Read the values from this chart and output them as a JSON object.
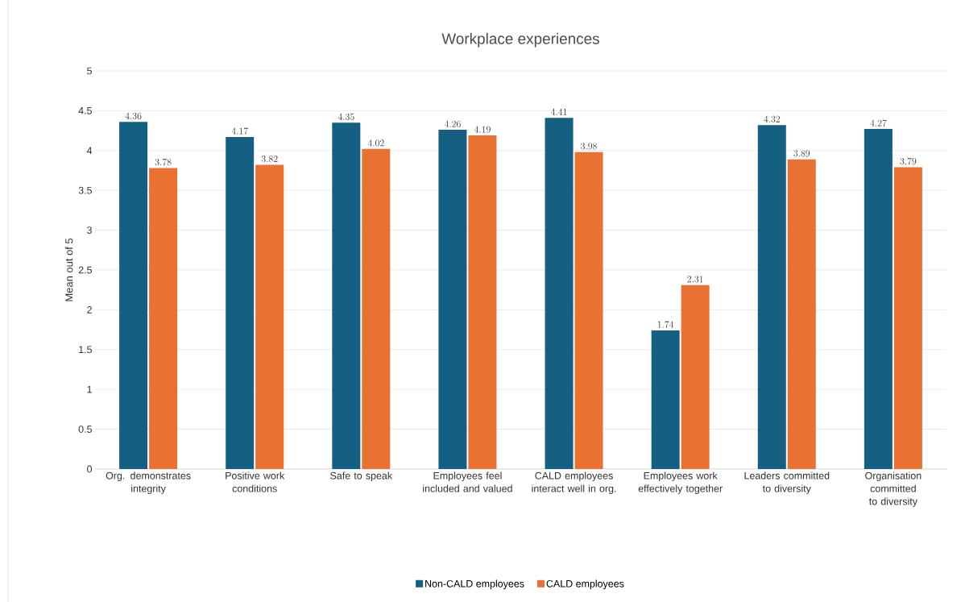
{
  "chart_data": {
    "type": "bar",
    "title": "Workplace experiences",
    "ylabel": "Mean out of 5",
    "categories": [
      "Org. demonstrates integrity",
      "Positive work conditions",
      "Safe to speak",
      "Employees feel included and valued",
      "CALD employees interact well in org.",
      "Employees work effectively together",
      "Leaders committed to diversity",
      "Organisation committed to diversity"
    ],
    "series": [
      {
        "name": "Non-CALD employees",
        "color": "#156082",
        "values": [
          4.36,
          4.17,
          4.35,
          4.26,
          4.41,
          1.74,
          4.32,
          4.27
        ]
      },
      {
        "name": "CALD employees",
        "color": "#e97132",
        "values": [
          3.78,
          3.82,
          4.02,
          4.19,
          3.98,
          2.31,
          3.89,
          3.79
        ]
      }
    ],
    "ylim": [
      0,
      5
    ],
    "yticks": [
      0,
      0.5,
      1,
      1.5,
      2,
      2.5,
      3,
      3.5,
      4,
      4.5,
      5
    ],
    "grid": "y",
    "legend": "bottom",
    "data_labels": true
  }
}
